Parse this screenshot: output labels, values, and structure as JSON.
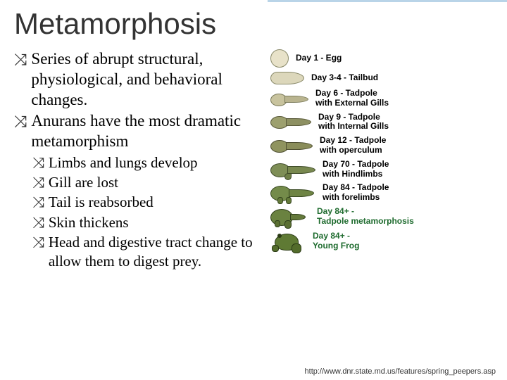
{
  "title": "Metamorphosis",
  "title_fontsize": 42,
  "body_fontsize_l1": 23,
  "body_fontsize_l2": 21,
  "bullet_glyph_l1": "⤨",
  "bullet_glyph_l2": "⤨",
  "text_color": "#222222",
  "accent_color": "#b9d4e8",
  "bullets_l1": [
    "Series  of abrupt structural, physiological, and behavioral changes.",
    "Anurans have the most dramatic metamorphism"
  ],
  "bullets_l2": [
    "Limbs and lungs develop",
    "Gill are lost",
    "Tail is reabsorbed",
    "Skin thickens",
    "Head and digestive tract change to allow them to digest prey."
  ],
  "diagram": {
    "label_font": "Arial",
    "label_fontsize": 12,
    "stages": [
      {
        "label": "Day 1 - Egg",
        "color": "#000000"
      },
      {
        "label": "Day 3-4 - Tailbud",
        "color": "#000000"
      },
      {
        "label": "Day 6 - Tadpole\nwith External Gills",
        "color": "#000000"
      },
      {
        "label": "Day 9 - Tadpole\nwith Internal Gills",
        "color": "#000000"
      },
      {
        "label": "Day 12 - Tadpole\nwith operculum",
        "color": "#000000"
      },
      {
        "label": "Day 70 - Tadpole\nwith Hindlimbs",
        "color": "#000000"
      },
      {
        "label": "Day 84 - Tadpole\nwith forelimbs",
        "color": "#000000"
      },
      {
        "label": "Day 84+ -\nTadpole metamorphosis",
        "color": "#1e6b2e"
      },
      {
        "label": "Day 84+ -\nYoung Frog",
        "color": "#1e6b2e"
      }
    ],
    "body_colors": {
      "egg": "#e8e2c9",
      "early": "#dcd7bb",
      "mid": "#9da06f",
      "late": "#748b4a",
      "frog": "#5f7a34"
    }
  },
  "footer_url": "http://www.dnr.state.md.us/features/spring_peepers.asp",
  "footer_fontsize": 11
}
